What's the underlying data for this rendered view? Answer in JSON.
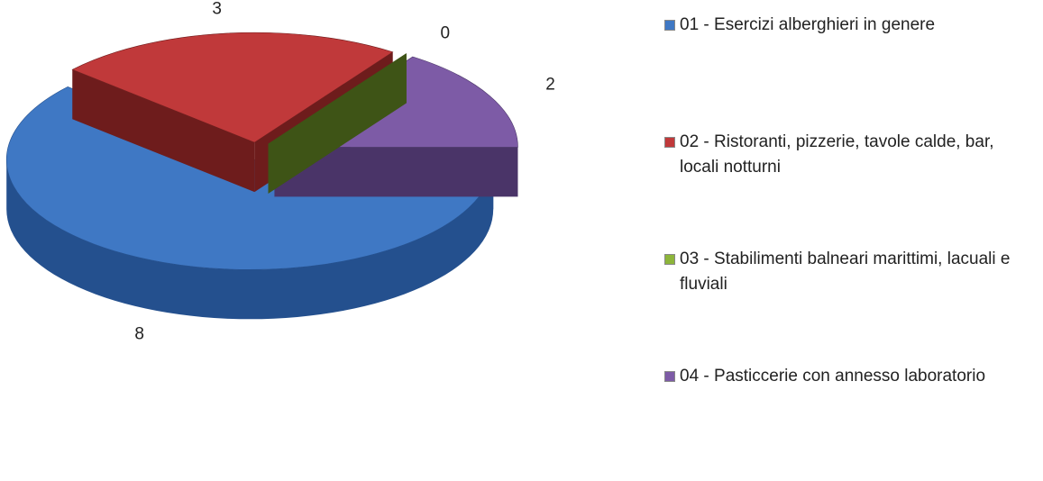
{
  "chart_data": {
    "type": "pie3d",
    "categories": [
      "01 - Esercizi alberghieri in genere",
      "02 - Ristoranti, pizzerie, tavole calde, bar, locali notturni",
      "03 - Stabilimenti balneari marittimi, lacuali e fluviali",
      "04 - Pasticcerie con annesso laboratorio"
    ],
    "values": [
      8,
      3,
      0,
      2
    ],
    "colors": [
      "#3f78c4",
      "#c0393a",
      "#8db53a",
      "#7d5ba6"
    ],
    "side_colors": [
      "#24508e",
      "#6e1c1c",
      "#3e5416",
      "#4a3468"
    ],
    "legend": "right"
  }
}
